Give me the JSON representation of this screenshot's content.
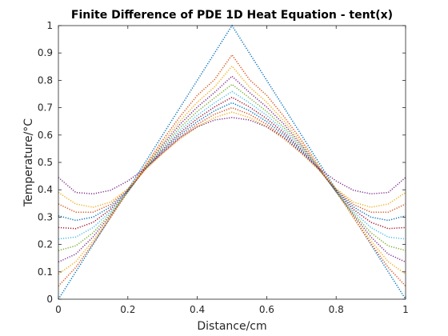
{
  "chart_data": {
    "type": "line",
    "title": "Finite Difference of PDE 1D Heat Equation - tent(x)",
    "xlabel": "Distance/cm",
    "ylabel": "Temperature/°C",
    "xlim": [
      0,
      1
    ],
    "ylim": [
      0,
      1
    ],
    "xticks": [
      0,
      0.2,
      0.4,
      0.6,
      0.8,
      1
    ],
    "xtick_labels": [
      "0",
      "0.2",
      "0.4",
      "0.6",
      "0.8",
      "1"
    ],
    "yticks": [
      0,
      0.1,
      0.2,
      0.3,
      0.4,
      0.5,
      0.6,
      0.7,
      0.8,
      0.9,
      1
    ],
    "ytick_labels": [
      "0",
      "0.1",
      "0.2",
      "0.3",
      "0.4",
      "0.5",
      "0.6",
      "0.7",
      "0.8",
      "0.9",
      "1"
    ],
    "grid": false,
    "line_style": "dotted",
    "x": [
      0,
      0.05,
      0.1,
      0.15,
      0.2,
      0.25,
      0.3,
      0.35,
      0.4,
      0.45,
      0.5,
      0.55,
      0.6,
      0.65,
      0.7,
      0.75,
      0.8,
      0.85,
      0.9,
      0.95,
      1
    ],
    "series": [
      {
        "color": "#0072BD",
        "values": [
          0.0,
          0.1,
          0.2,
          0.3,
          0.4,
          0.5,
          0.6,
          0.7,
          0.8,
          0.9,
          1.0,
          0.9,
          0.8,
          0.7,
          0.6,
          0.5,
          0.4,
          0.3,
          0.2,
          0.1,
          0.0
        ]
      },
      {
        "color": "#D95319",
        "values": [
          0.048,
          0.116,
          0.204,
          0.298,
          0.394,
          0.488,
          0.581,
          0.667,
          0.745,
          0.803,
          0.893,
          0.803,
          0.745,
          0.667,
          0.581,
          0.488,
          0.394,
          0.298,
          0.204,
          0.116,
          0.048
        ]
      },
      {
        "color": "#EDB120",
        "values": [
          0.092,
          0.137,
          0.214,
          0.302,
          0.392,
          0.485,
          0.572,
          0.651,
          0.72,
          0.776,
          0.852,
          0.776,
          0.72,
          0.651,
          0.572,
          0.485,
          0.392,
          0.302,
          0.214,
          0.137,
          0.092
        ]
      },
      {
        "color": "#7E2F8E",
        "values": [
          0.136,
          0.165,
          0.228,
          0.307,
          0.392,
          0.481,
          0.564,
          0.639,
          0.702,
          0.756,
          0.815,
          0.756,
          0.702,
          0.639,
          0.564,
          0.481,
          0.392,
          0.307,
          0.228,
          0.165,
          0.136
        ]
      },
      {
        "color": "#77AC30",
        "values": [
          0.178,
          0.195,
          0.243,
          0.313,
          0.392,
          0.479,
          0.557,
          0.627,
          0.686,
          0.736,
          0.785,
          0.736,
          0.686,
          0.627,
          0.557,
          0.479,
          0.392,
          0.313,
          0.243,
          0.195,
          0.178
        ]
      },
      {
        "color": "#4DBEEE",
        "values": [
          0.22,
          0.227,
          0.262,
          0.32,
          0.393,
          0.477,
          0.551,
          0.617,
          0.672,
          0.718,
          0.759,
          0.718,
          0.672,
          0.617,
          0.551,
          0.477,
          0.393,
          0.32,
          0.262,
          0.227,
          0.22
        ]
      },
      {
        "color": "#A2142F",
        "values": [
          0.262,
          0.258,
          0.281,
          0.328,
          0.395,
          0.476,
          0.546,
          0.608,
          0.66,
          0.703,
          0.738,
          0.703,
          0.66,
          0.608,
          0.546,
          0.476,
          0.395,
          0.328,
          0.281,
          0.258,
          0.262
        ]
      },
      {
        "color": "#0072BD",
        "values": [
          0.305,
          0.288,
          0.3,
          0.337,
          0.398,
          0.475,
          0.541,
          0.6,
          0.649,
          0.689,
          0.718,
          0.689,
          0.649,
          0.6,
          0.541,
          0.475,
          0.398,
          0.337,
          0.3,
          0.288,
          0.305
        ]
      },
      {
        "color": "#D95319",
        "values": [
          0.348,
          0.318,
          0.318,
          0.346,
          0.401,
          0.474,
          0.536,
          0.592,
          0.639,
          0.676,
          0.7,
          0.676,
          0.639,
          0.592,
          0.536,
          0.474,
          0.401,
          0.346,
          0.318,
          0.318,
          0.348
        ]
      },
      {
        "color": "#EDB120",
        "values": [
          0.39,
          0.348,
          0.336,
          0.355,
          0.404,
          0.473,
          0.532,
          0.585,
          0.63,
          0.664,
          0.684,
          0.664,
          0.63,
          0.585,
          0.532,
          0.473,
          0.404,
          0.355,
          0.336,
          0.348,
          0.39
        ]
      },
      {
        "color": "#7E2F8E",
        "values": [
          0.445,
          0.39,
          0.385,
          0.398,
          0.432,
          0.478,
          0.535,
          0.59,
          0.63,
          0.655,
          0.664,
          0.655,
          0.63,
          0.59,
          0.535,
          0.478,
          0.432,
          0.398,
          0.385,
          0.39,
          0.445
        ]
      }
    ]
  }
}
